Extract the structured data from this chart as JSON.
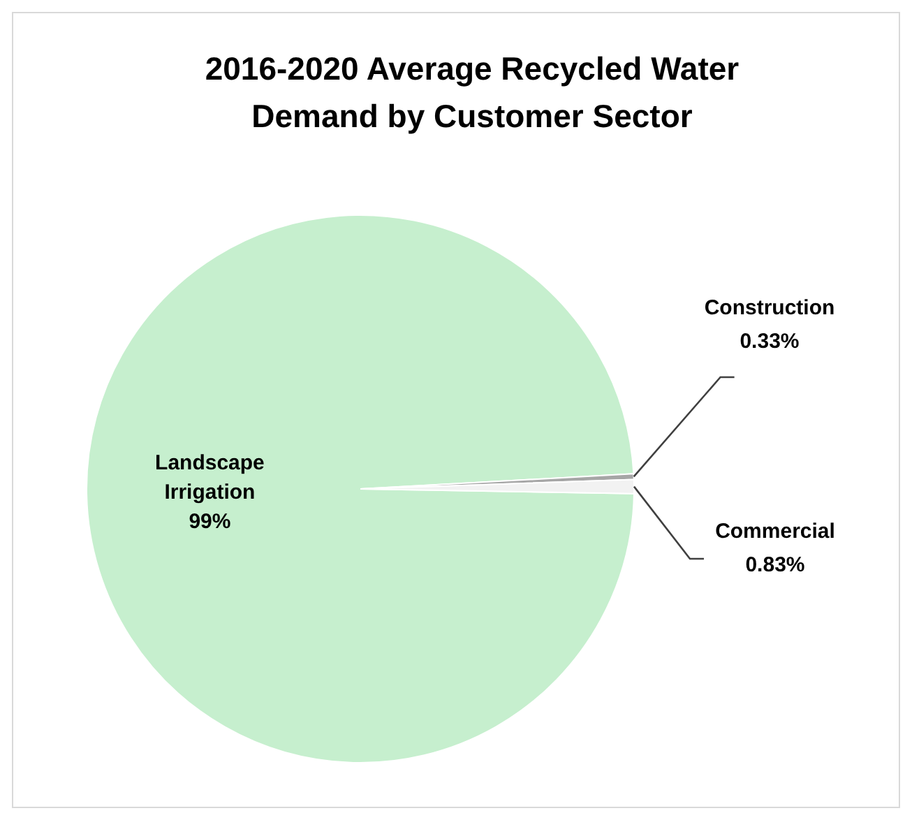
{
  "chart_data": {
    "type": "pie",
    "title": "2016-2020 Average Recycled Water Demand by Customer Sector",
    "categories": [
      "Landscape Irrigation",
      "Construction",
      "Commercial"
    ],
    "values": [
      99,
      0.33,
      0.83
    ],
    "colors": [
      "#c6efce",
      "#a6a6a6",
      "#f2f2f2"
    ],
    "value_labels": [
      "99%",
      "0.33%",
      "0.83%"
    ],
    "legend": false
  }
}
